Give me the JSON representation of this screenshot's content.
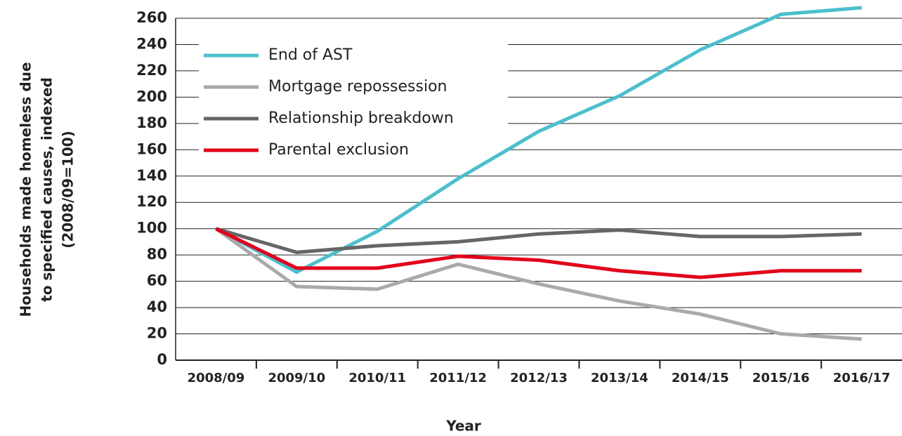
{
  "chart_data": {
    "type": "line",
    "y_label": [
      "Households made homeless due",
      "to specified causes, indexed",
      "(2008/09=100)"
    ],
    "x_label": "Year",
    "categories": [
      "2008/09",
      "2009/10",
      "2010/11",
      "2011/12",
      "2012/13",
      "2013/14",
      "2014/15",
      "2015/16",
      "2016/17"
    ],
    "series": [
      {
        "name": "End of AST",
        "color": "#4cbfcd",
        "values": [
          100,
          67,
          98,
          138,
          174,
          201,
          236,
          263,
          268
        ]
      },
      {
        "name": "Mortgage repossession",
        "color": "#aaaaaa",
        "values": [
          100,
          56,
          54,
          73,
          58,
          45,
          35,
          20,
          16
        ]
      },
      {
        "name": "Relationship breakdown",
        "color": "#666666",
        "values": [
          100,
          82,
          87,
          90,
          96,
          99,
          94,
          94,
          96
        ]
      },
      {
        "name": "Parental exclusion",
        "color": "#e2001a",
        "values": [
          100,
          70,
          70,
          79,
          76,
          68,
          63,
          68,
          68
        ]
      }
    ],
    "ylim": [
      0,
      270
    ],
    "yticks": [
      0,
      20,
      40,
      60,
      80,
      100,
      120,
      140,
      160,
      180,
      200,
      220,
      240,
      260
    ],
    "grid": true,
    "legend": "top-left"
  }
}
